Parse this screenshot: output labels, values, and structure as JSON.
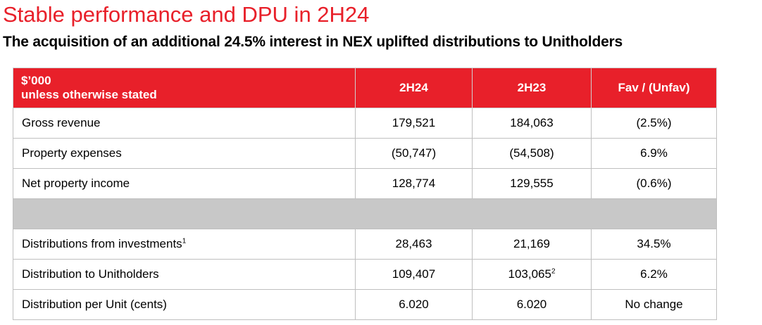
{
  "title": "Stable performance and DPU in 2H24",
  "subtitle": "The acquisition of an additional 24.5% interest in NEX uplifted distributions to Unitholders",
  "colors": {
    "accent_red": "#e8202a",
    "spacer_grey": "#c8c8c8",
    "header_text": "#ffffff"
  },
  "table": {
    "header": {
      "units_line1": "$’000",
      "units_line2": "unless otherwise stated",
      "col_2h24": "2H24",
      "col_2h23": "2H23",
      "col_fav": "Fav / (Unfav)"
    },
    "rows": [
      {
        "label": "Gross revenue",
        "label_sup": "",
        "v2h24": "179,521",
        "v2h23": "184,063",
        "v2h23_sup": "",
        "fav": "(2.5%)"
      },
      {
        "label": "Property expenses",
        "label_sup": "",
        "v2h24": "(50,747)",
        "v2h23": "(54,508)",
        "v2h23_sup": "",
        "fav": "6.9%"
      },
      {
        "label": "Net property income",
        "label_sup": "",
        "v2h24": "128,774",
        "v2h23": "129,555",
        "v2h23_sup": "",
        "fav": "(0.6%)"
      },
      {
        "label": "Distributions from investments",
        "label_sup": "1",
        "v2h24": "28,463",
        "v2h23": "21,169",
        "v2h23_sup": "",
        "fav": "34.5%"
      },
      {
        "label": "Distribution to Unitholders",
        "label_sup": "",
        "v2h24": "109,407",
        "v2h23": "103,065",
        "v2h23_sup": "2",
        "fav": "6.2%"
      },
      {
        "label": "Distribution per Unit (cents)",
        "label_sup": "",
        "v2h24": "6.020",
        "v2h23": "6.020",
        "v2h23_sup": "",
        "fav": "No change"
      }
    ]
  }
}
